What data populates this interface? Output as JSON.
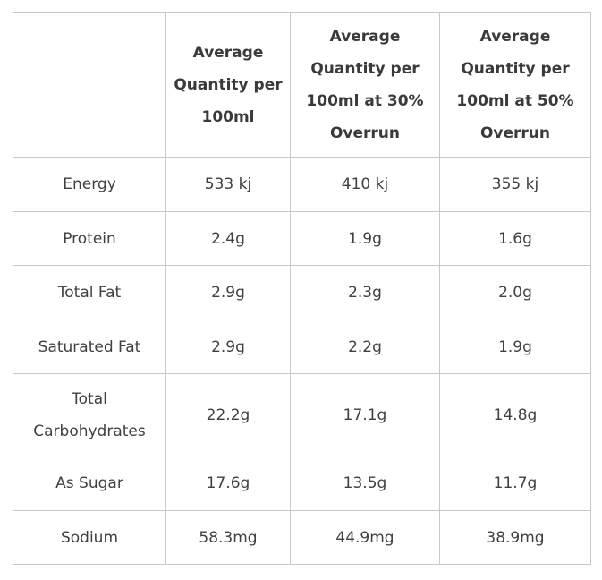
{
  "table": {
    "headers": [
      "",
      "Average Quantity per 100ml",
      "Average Quantity per 100ml at 30% Overrun",
      "Average Quantity per 100ml at 50% Overrun"
    ],
    "rows": [
      {
        "label": "Energy",
        "values": [
          "533 kj",
          "410 kj",
          "355 kj"
        ]
      },
      {
        "label": "Protein",
        "values": [
          "2.4g",
          "1.9g",
          "1.6g"
        ]
      },
      {
        "label": "Total Fat",
        "values": [
          "2.9g",
          "2.3g",
          "2.0g"
        ]
      },
      {
        "label": "Saturated Fat",
        "values": [
          "2.9g",
          "2.2g",
          "1.9g"
        ]
      },
      {
        "label": "Total Carbohydrates",
        "values": [
          "22.2g",
          "17.1g",
          "14.8g"
        ]
      },
      {
        "label": "As Sugar",
        "values": [
          "17.6g",
          "13.5g",
          "11.7g"
        ]
      },
      {
        "label": "Sodium",
        "values": [
          "58.3mg",
          "44.9mg",
          "38.9mg"
        ]
      }
    ]
  }
}
